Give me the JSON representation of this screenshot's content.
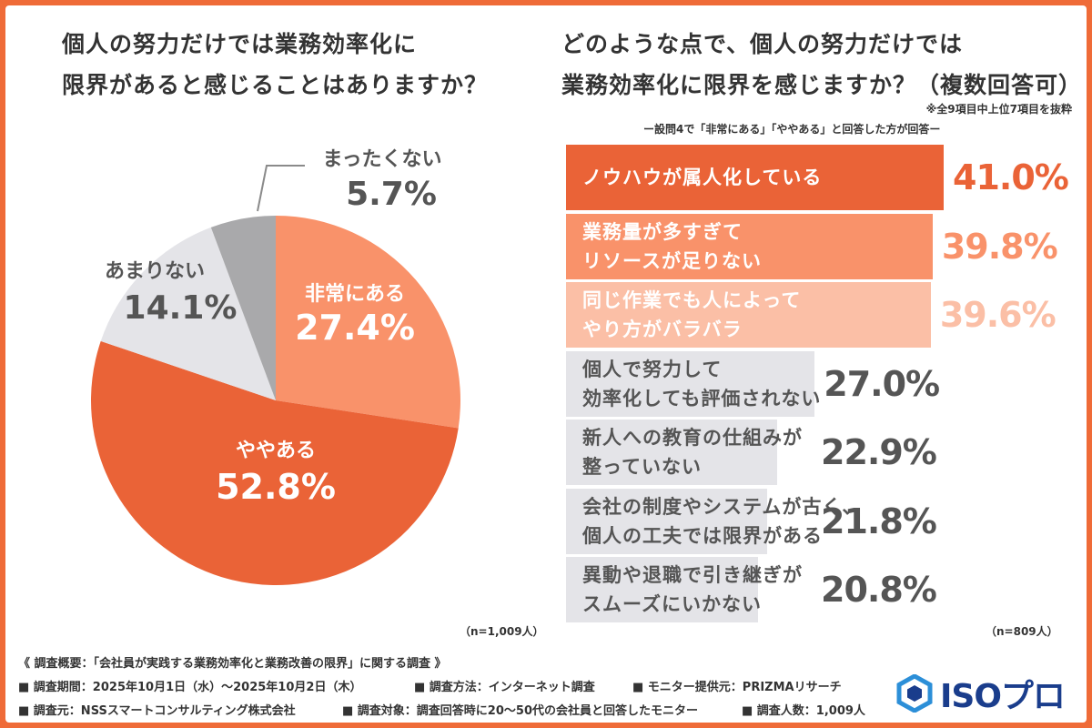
{
  "left_title": "個人の努力だけでは業務効率化に\n限界があると感じることはありますか？",
  "right_title": "どのような点で、個人の努力だけでは\n業務効率化に限界を感じますか？（複数回答可）",
  "right_note1": "※全9項目中上位7項目を抜粋",
  "right_note2": "ー設問4で「非常にある」「ややある」と回答した方が回答ー",
  "left_n": "（n=1,009人）",
  "right_n": "（n=809人）",
  "chart_data": [
    {
      "type": "pie",
      "slices": [
        {
          "label": "非常にある",
          "value": 27.4,
          "value_text": "27.4%",
          "color": "#f9926a",
          "text_color": "#ffffff"
        },
        {
          "label": "ややある",
          "value": 52.8,
          "value_text": "52.8%",
          "color": "#ea6337",
          "text_color": "#ffffff"
        },
        {
          "label": "あまりない",
          "value": 14.1,
          "value_text": "14.1%",
          "color": "#e4e4e8",
          "text_color": "#555555"
        },
        {
          "label": "まったくない",
          "value": 5.7,
          "value_text": "5.7%",
          "color": "#a9a9ab",
          "text_color": "#555555"
        }
      ]
    },
    {
      "type": "bar",
      "orientation": "horizontal",
      "categories": [
        "ノウハウが属人化している",
        "業務量が多すぎて\nリソースが足りない",
        "同じ作業でも人によって\nやり方がバラバラ",
        "個人で努力して\n効率化しても評価されない",
        "新人への教育の仕組みが\n整っていない",
        "会社の制度やシステムが古く、\n個人の工夫では限界がある",
        "異動や退職で引き継ぎが\nスムーズにいかない"
      ],
      "values": [
        41.0,
        39.8,
        39.6,
        27.0,
        22.9,
        21.8,
        20.8
      ],
      "value_labels": [
        "41.0%",
        "39.8%",
        "39.6%",
        "27.0%",
        "22.9%",
        "21.8%",
        "20.8%"
      ],
      "bar_colors": [
        "#ea6337",
        "#f9926a",
        "#fbbfa6",
        "#e4e4e8",
        "#e4e4e8",
        "#e4e4e8",
        "#e4e4e8"
      ],
      "label_colors": [
        "#ffffff",
        "#ffffff",
        "#ffffff",
        "#555555",
        "#555555",
        "#555555",
        "#555555"
      ],
      "value_colors": [
        "#ea6337",
        "#f9926a",
        "#fbbfa6",
        "#555555",
        "#555555",
        "#555555",
        "#555555"
      ]
    }
  ],
  "footer": {
    "line1": "《 調査概要：「会社員が実践する業務効率化と業務改善の限界」に関する調査 》",
    "line2a": "■ 調査期間：2025年10月1日（水）〜2025年10月2日（木）",
    "line2b": "■ 調査方法：インターネット調査",
    "line2c": "■ モニター提供元：PRIZMAリサーチ",
    "line3a": "■ 調査元：NSSスマートコンサルティング株式会社",
    "line3b": "■ 調査対象：調査回答時に20〜50代の会社員と回答したモニター",
    "line3c": "■ 調査人数：1,009人"
  },
  "logo_text": "ISOプロ",
  "colors": {
    "accent": "#ef6b38",
    "logo": "#1a3d8c"
  }
}
